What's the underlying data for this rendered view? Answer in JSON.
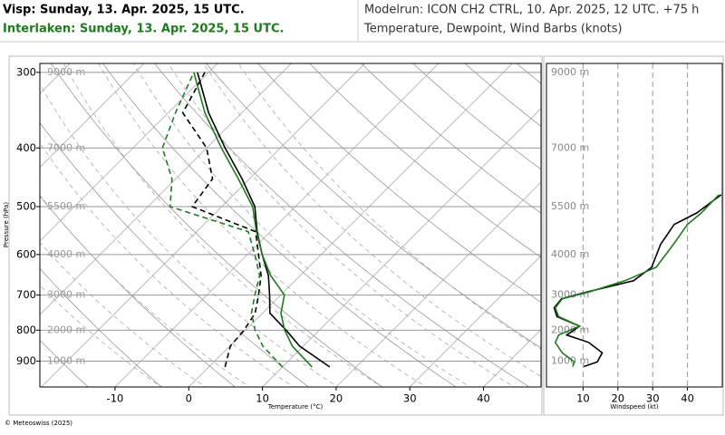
{
  "header": {
    "station1": "Visp: Sunday, 13. Apr. 2025, 15 UTC.",
    "station2": "Interlaken: Sunday, 13. Apr. 2025, 15 UTC.",
    "modelrun": "Modelrun: ICON CH2 CTRL, 10. Apr. 2025, 12 UTC. +75 h",
    "subtitle": "Temperature, Dewpoint, Wind Barbs (knots)"
  },
  "footer": "© Meteoswiss (2025)",
  "chart_data": [
    {
      "type": "skewt",
      "xlabel": "Temperature (°C)",
      "ylabel": "Pressure (hPa)",
      "xlim": [
        -20.2,
        47.8
      ],
      "xticks": [
        -10,
        0,
        10,
        20,
        30,
        40
      ],
      "ylim": [
        993,
        290
      ],
      "yticks": [
        300,
        400,
        500,
        600,
        700,
        800,
        900
      ],
      "log_y": true,
      "y2ticks": [
        {
          "value": 300,
          "label": "9000 m"
        },
        {
          "value": 400,
          "label": "7000 m"
        },
        {
          "value": 500,
          "label": "5500 m"
        },
        {
          "value": 600,
          "label": "4000 m"
        },
        {
          "value": 700,
          "label": "3000 m"
        },
        {
          "value": 800,
          "label": "2000 m"
        },
        {
          "value": 900,
          "label": "1000 m"
        }
      ],
      "pressure": [
        920,
        850,
        800,
        750,
        700,
        650,
        600,
        550,
        500,
        450,
        400,
        350,
        300
      ],
      "series": [
        {
          "color": "#000000",
          "dashed": false,
          "values": [
            16.4,
            9.5,
            5.5,
            1.0,
            -1.5,
            -4.3,
            -8.0,
            -11.8,
            -15.5,
            -21,
            -27.5,
            -34.5,
            -41.5
          ]
        },
        {
          "color": "#1e7b1e",
          "dashed": false,
          "values": [
            14,
            8.5,
            5.3,
            2.5,
            0.5,
            -4,
            -8,
            -11.9,
            -15.8,
            -21.5,
            -28,
            -35,
            -42
          ]
        },
        {
          "color": "#000000",
          "dashed": true,
          "values": [
            2.2,
            0.1,
            -0.2,
            -1.0,
            -3,
            -5.3,
            -8.5,
            -12,
            -24,
            -25,
            -30,
            -38,
            -40.5
          ]
        },
        {
          "color": "#1e7b1e",
          "dashed": true,
          "values": [
            10,
            4.5,
            1.3,
            -1.5,
            -3.5,
            -5.5,
            -9,
            -13,
            -27,
            -30.5,
            -36,
            -39,
            -42
          ]
        }
      ]
    },
    {
      "type": "line",
      "xlabel": "Windspeed (kt)",
      "xlim": [
        0,
        50
      ],
      "xticks": [
        10,
        20,
        30,
        40
      ],
      "ylim": [
        993,
        290
      ],
      "log_y": true,
      "pressure": [
        919,
        903,
        872,
        838,
        815,
        788,
        760,
        735,
        710,
        691,
        663,
        630,
        577,
        535,
        512,
        478
      ],
      "series": [
        {
          "color": "#000000",
          "values": [
            10.2,
            14.1,
            15.5,
            11.6,
            5.3,
            9.0,
            2.5,
            1.7,
            3.8,
            11.5,
            24.5,
            29.7,
            32.3,
            36.2,
            42.7,
            49.7
          ]
        },
        {
          "color": "#1e7b1e",
          "values": [
            7,
            7.5,
            4,
            2,
            3,
            9,
            3,
            2,
            4,
            12,
            22,
            31,
            36,
            40,
            44,
            49
          ]
        }
      ]
    }
  ]
}
